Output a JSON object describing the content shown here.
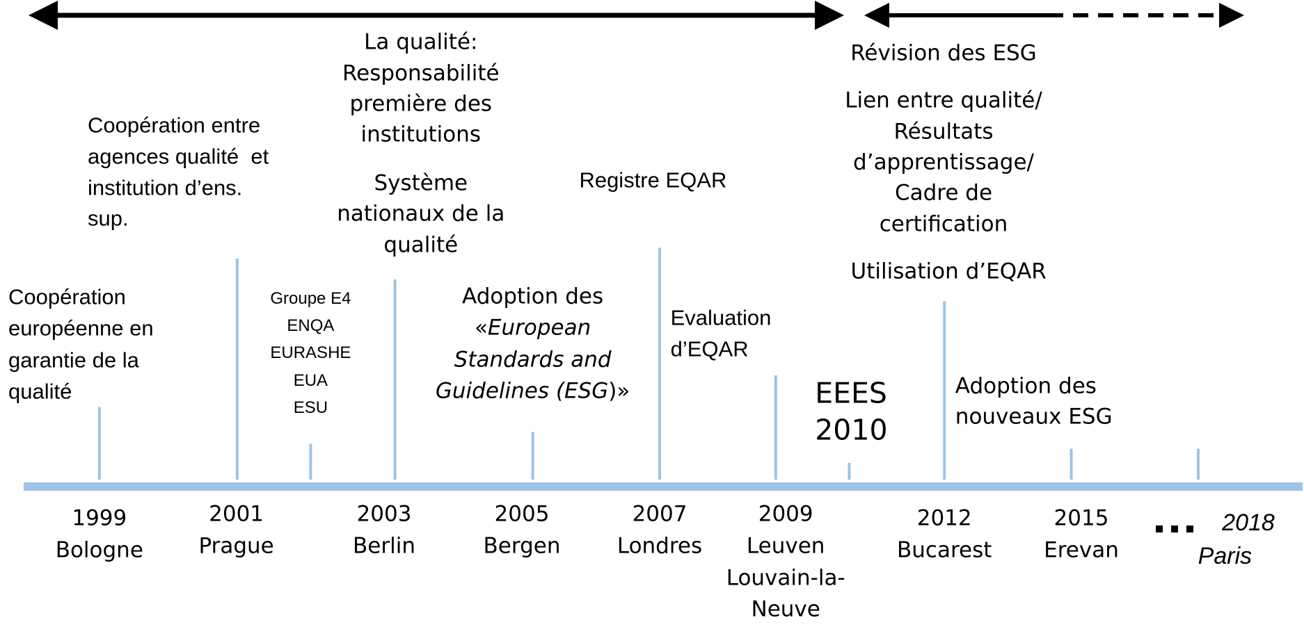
{
  "periods": [
    {
      "year": "1999",
      "place": [
        "Bologne"
      ]
    },
    {
      "year": "2001",
      "place": [
        "Prague"
      ]
    },
    {
      "year": "2003",
      "place": [
        "Berlin"
      ]
    },
    {
      "year": "2005",
      "place": [
        "Bergen"
      ]
    },
    {
      "year": "2007",
      "place": [
        "Londres"
      ]
    },
    {
      "year": "2009",
      "place": [
        "Leuven",
        "Louvain-la-",
        "Neuve"
      ]
    },
    {
      "year": "2012",
      "place": [
        "Bucarest"
      ]
    },
    {
      "year": "2015",
      "place": [
        "Erevan"
      ]
    },
    {
      "year": "2018",
      "place": [
        "Paris"
      ],
      "italic": true
    }
  ],
  "events": [
    {
      "lines": [
        "Coopération",
        "européenne en",
        "garantie de la",
        "qualité"
      ]
    },
    {
      "lines": [
        "Coopération entre",
        "agences qualité  et",
        "institution d’ens.",
        "sup."
      ]
    },
    {
      "lines": [
        "Groupe E4",
        "ENQA",
        "EURASHE",
        "EUA",
        "ESU"
      ]
    },
    {
      "lines": [
        "La qualité:",
        "Responsabilité",
        "première des",
        "institutions"
      ]
    },
    {
      "lines": [
        "Système",
        "nationaux de la",
        "qualité"
      ]
    },
    {
      "lines": [
        "Adoption des",
        [
          {
            "text": "«"
          },
          {
            "text": "European",
            "italic": true
          }
        ],
        [
          {
            "text": "Standards and",
            "italic": true
          }
        ],
        [
          {
            "text": "Guidelines (ESG",
            "italic": true
          },
          {
            "text": ")»"
          }
        ]
      ]
    },
    {
      "lines": [
        "Registre EQAR"
      ]
    },
    {
      "lines": [
        "Evaluation",
        "d’EQAR"
      ]
    },
    {
      "lines": [
        "EEES",
        "2010"
      ]
    },
    {
      "lines": [
        "Révision des ESG"
      ]
    },
    {
      "lines": [
        "Lien entre qualité/",
        "Résultats",
        "d’apprentissage/",
        "Cadre de",
        "certification"
      ]
    },
    {
      "lines": [
        "Utilisation d’EQAR"
      ]
    },
    {
      "lines": [
        "Adoption des",
        "nouveaux ESG"
      ]
    }
  ]
}
